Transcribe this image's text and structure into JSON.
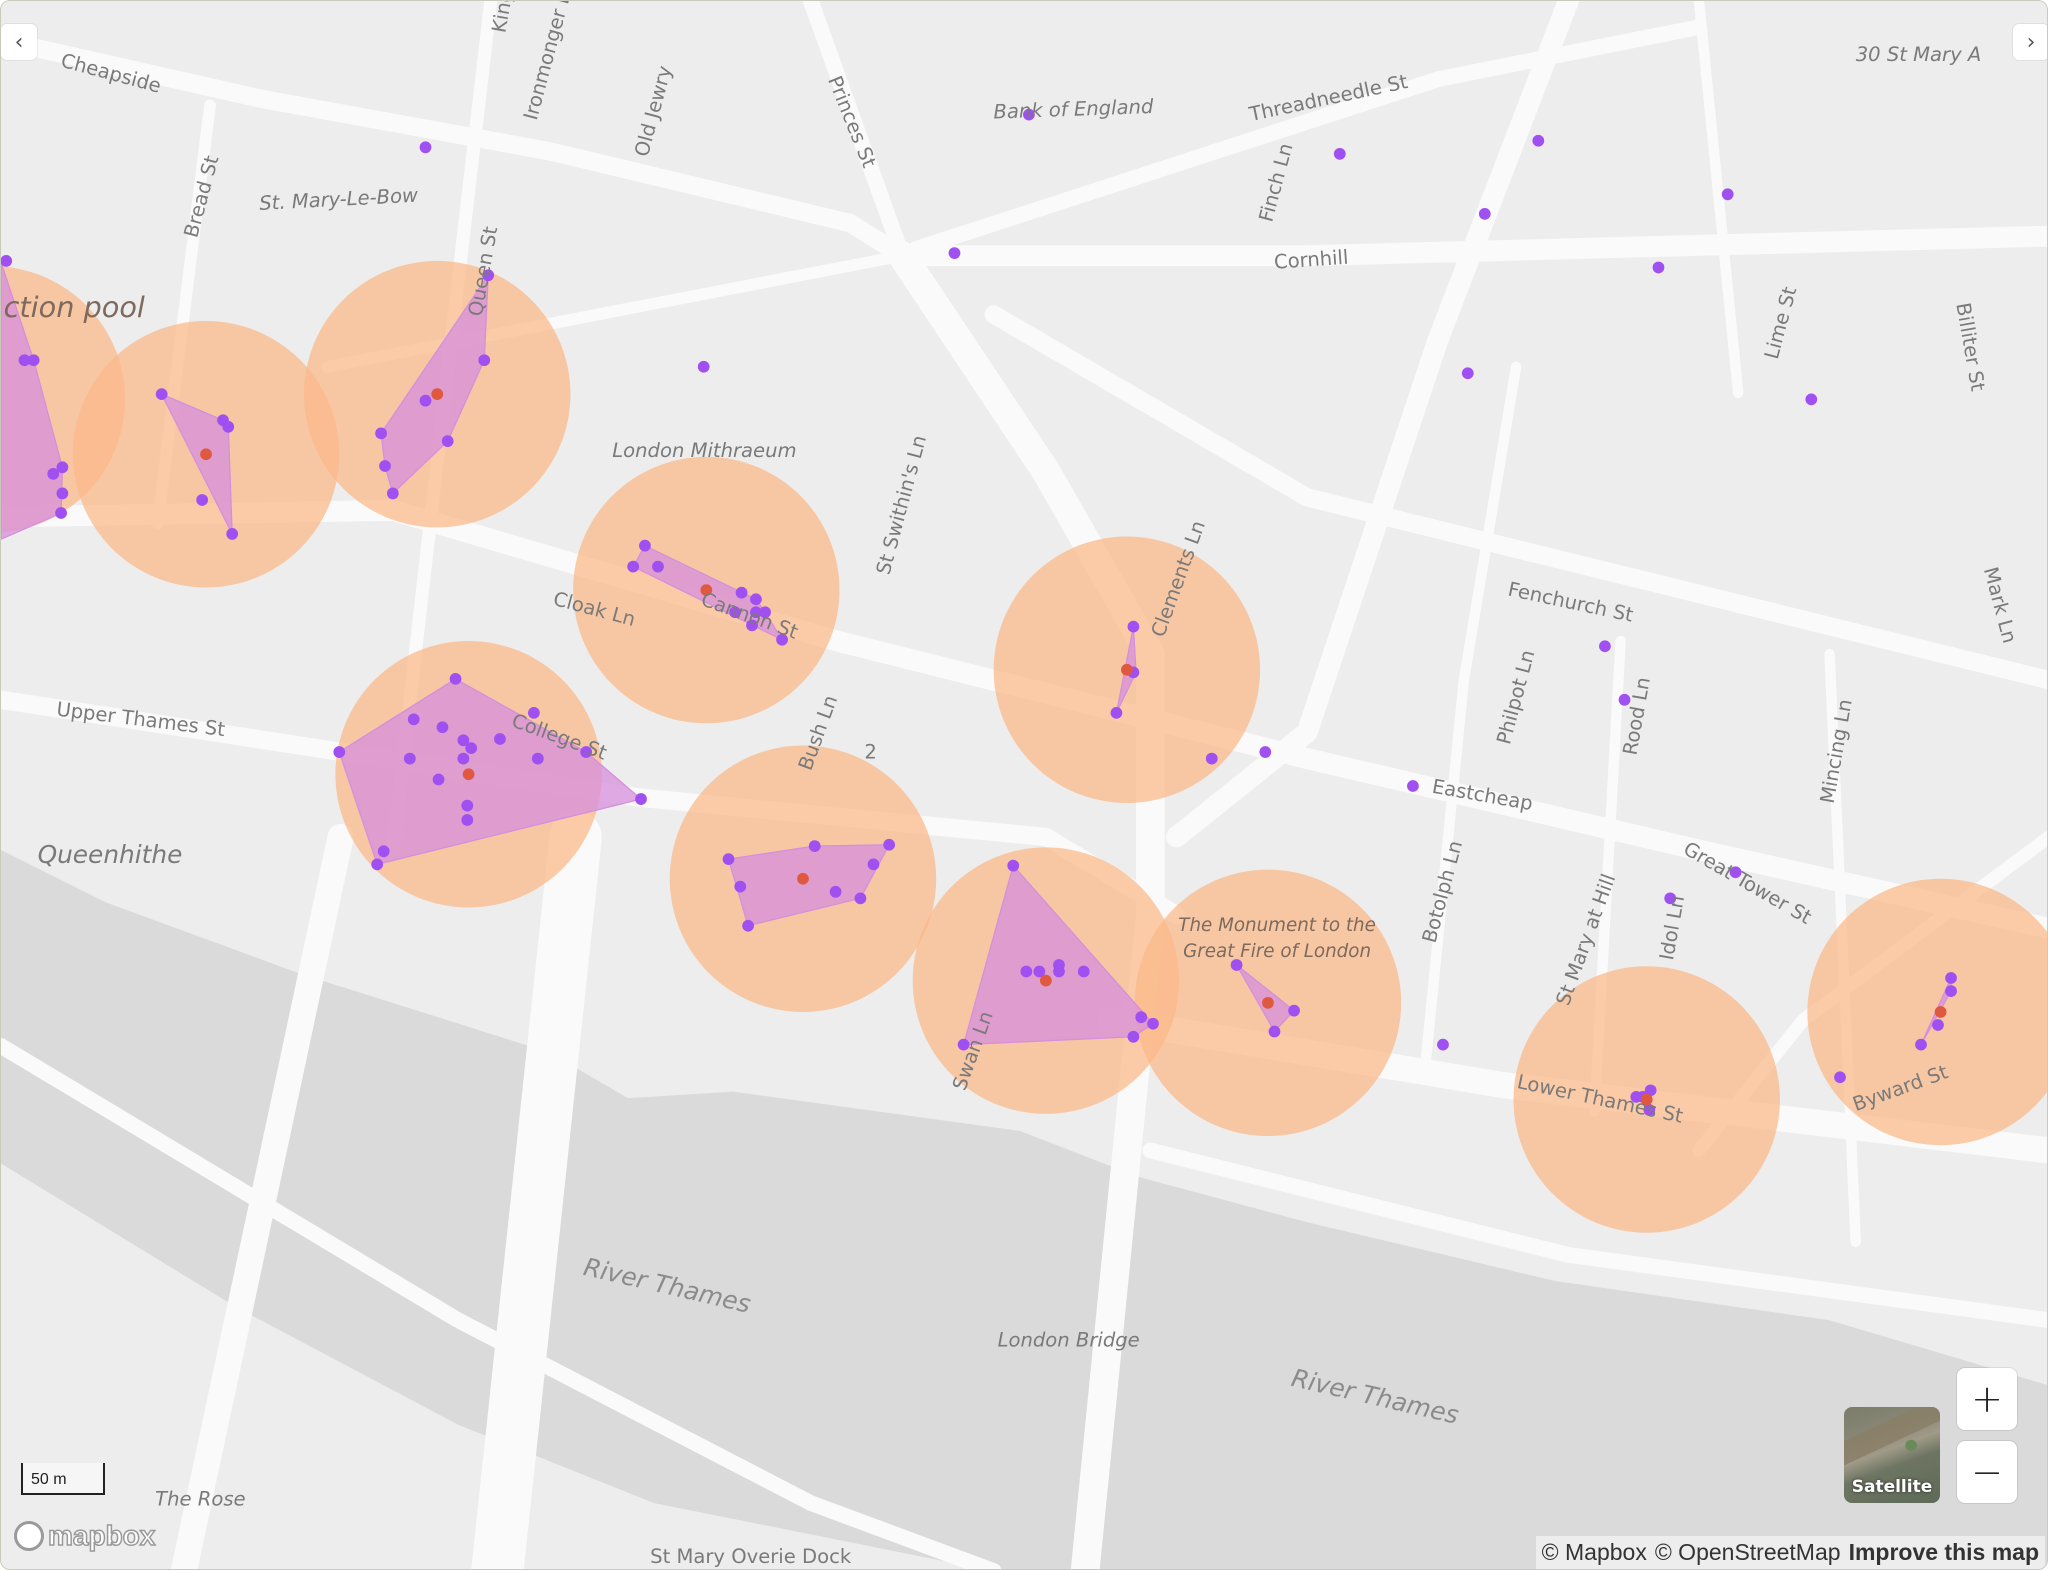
{
  "map": {
    "street_labels": {
      "cheapside": "Cheapside",
      "bread_st": "Bread St",
      "st_mary_le_bow": "St. Mary-Le-Bow",
      "queen_st": "Queen St",
      "king_st": "King",
      "ironmonger_ln": "Ironmonger L",
      "old_jewry": "Old Jewry",
      "princes_st": "Princes St",
      "threadneedle_st": "Threadneedle St",
      "finch_ln": "Finch Ln",
      "cornhill": "Cornhill",
      "lime_st": "Lime St",
      "billiter_st": "Billiter St",
      "st_swithins_ln": "St Swithin's Ln",
      "clements_ln": "Clements Ln",
      "fenchurch_st": "Fenchurch St",
      "mark_ln": "Mark Ln",
      "cloak_ln": "Cloak Ln",
      "cannon_st": "Cannon St",
      "upper_thames_st": "Upper Thames St",
      "college_st": "College St",
      "bush_ln": "Bush Ln",
      "philpot_ln": "Philpot Ln",
      "rood_ln": "Rood Ln",
      "mincing_ln": "Mincing Ln",
      "eastcheap": "Eastcheap",
      "great_tower_st": "Great Tower St",
      "botolph_ln": "Botolph Ln",
      "st_mary_at_hill": "St Mary at Hill",
      "idol_ln": "Idol Ln",
      "byward_st": "Byward St",
      "lower_thames_st": "Lower Thames St",
      "swan_ln": "Swan Ln",
      "route_number": "2"
    },
    "place_labels": {
      "bank_of_england": "Bank of England",
      "st_mary_axe": "30 St Mary A",
      "london_mithraeum": "London Mithraeum",
      "collection_pool": "ction pool",
      "queenhithe": "Queenhithe",
      "monument_line1": "The Monument to the",
      "monument_line2": "Great Fire of London",
      "london_bridge": "London Bridge",
      "river_thames": "River Thames",
      "the_rose": "The Rose",
      "st_mary_overie_dock": "St Mary Overie Dock"
    },
    "colors": {
      "cluster_circle": "#fbb888",
      "hull_polygon": "#d58fdc",
      "point": "#a04ff0",
      "centroid": "#e0583f",
      "road": "#fafafa",
      "land": "#ededed",
      "water": "#dadada"
    }
  },
  "controls": {
    "zoom_in": "+",
    "zoom_out": "−",
    "satellite_label": "Satellite",
    "scale_label": "50 m",
    "prev_arrow": "‹",
    "next_arrow": "›",
    "logo_text": "mapbox"
  },
  "attribution": {
    "mapbox": "© Mapbox",
    "osm": "© OpenStreetMap",
    "improve": "Improve this map"
  }
}
